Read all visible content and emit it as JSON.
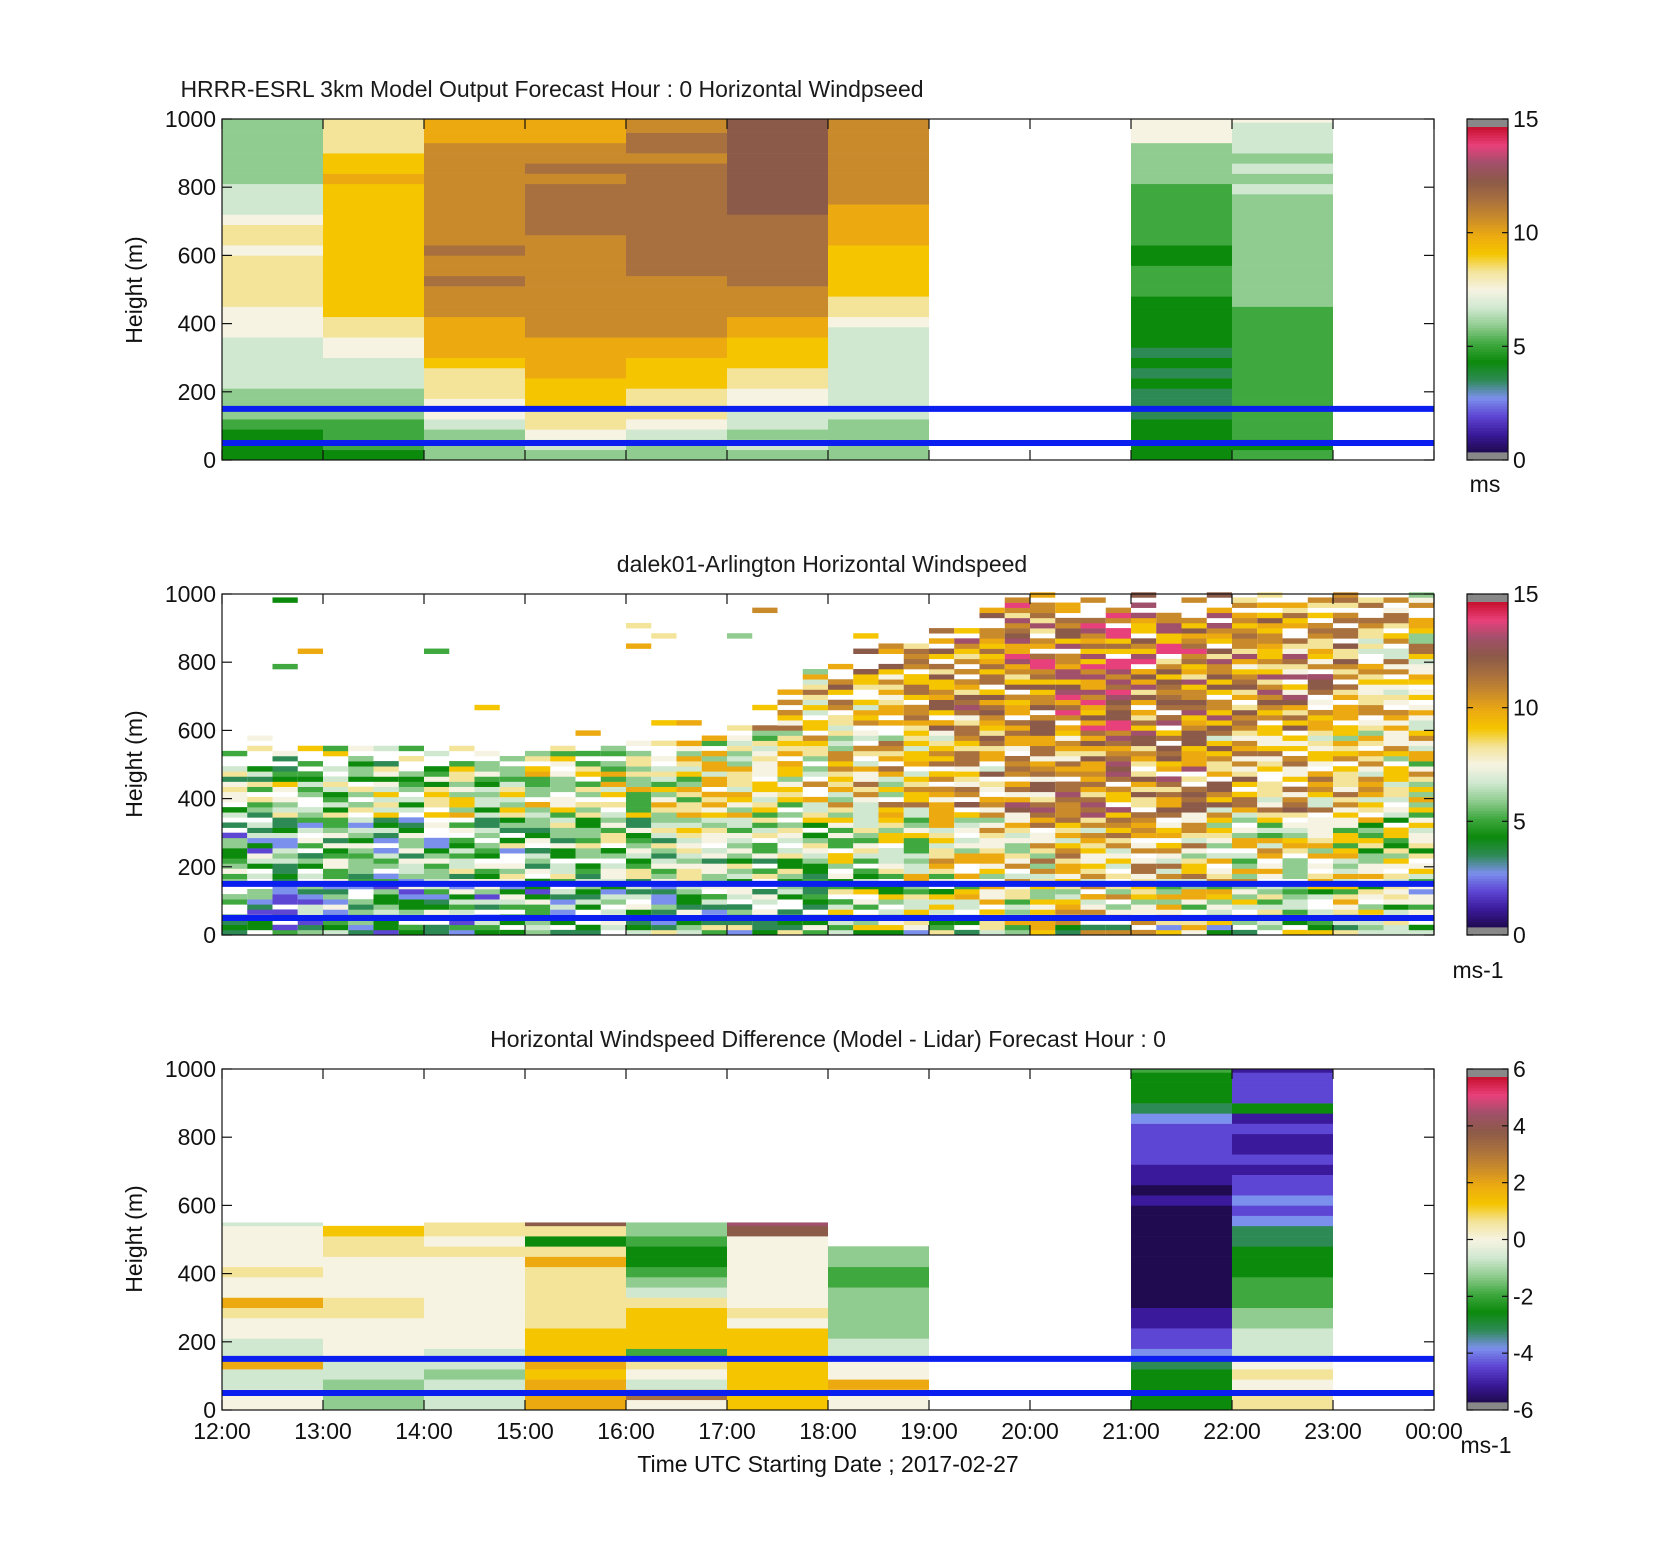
{
  "colors": {
    "speed_colormap": [
      "#888888",
      "#200a50",
      "#3a1a9a",
      "#5e46d4",
      "#7b8fec",
      "#2e8a55",
      "#0c8a0c",
      "#3fa83f",
      "#90cc90",
      "#d0e8d0",
      "#f6f3e2",
      "#f3e49a",
      "#f5c500",
      "#ecaa10",
      "#c98a2c",
      "#a8703e",
      "#8c5a48",
      "#a0506a",
      "#e8407a",
      "#c8102e",
      "#888888"
    ],
    "diff_colormap": [
      "#888888",
      "#200a50",
      "#3a1a9a",
      "#5e46d4",
      "#7b8fec",
      "#2e8a55",
      "#0c8a0c",
      "#3fa83f",
      "#90cc90",
      "#d0e8d0",
      "#f6f3e2",
      "#f3e49a",
      "#f5c500",
      "#ecaa10",
      "#c98a2c",
      "#a8703e",
      "#8c5a48",
      "#a0506a",
      "#e8407a",
      "#c8102e",
      "#888888"
    ],
    "reference_lines": "#0a1ef0"
  },
  "chart_data": [
    {
      "type": "heatmap",
      "title": "HRRR-ESRL 3km Model Output   Forecast Hour : 0 Horizontal Windpseed",
      "ylabel": "Height (m)",
      "ylim": [
        0,
        1000
      ],
      "yticks": [
        "0",
        "200",
        "400",
        "600",
        "800",
        "1000"
      ],
      "xlim_hours": [
        12,
        24
      ],
      "colorbar": {
        "ticks": [
          "0",
          "5",
          "10",
          "15"
        ],
        "range": [
          0,
          15
        ],
        "unit": "ms"
      },
      "reference_heights_m": [
        50,
        150
      ],
      "hour_columns": [
        {
          "start": 12,
          "end": 13,
          "profile": [
            [
              0,
              4.6
            ],
            [
              60,
              4.5
            ],
            [
              100,
              5.2
            ],
            [
              150,
              5.8
            ],
            [
              200,
              6.2
            ],
            [
              300,
              6.8
            ],
            [
              400,
              7.4
            ],
            [
              450,
              7.8
            ],
            [
              500,
              8.0
            ],
            [
              700,
              8.0
            ],
            [
              720,
              7.0
            ],
            [
              800,
              6.5
            ],
            [
              900,
              6.0
            ],
            [
              1000,
              6.0
            ]
          ]
        },
        {
          "start": 13,
          "end": 14,
          "profile": [
            [
              0,
              4.6
            ],
            [
              60,
              5.0
            ],
            [
              120,
              5.8
            ],
            [
              200,
              6.3
            ],
            [
              300,
              6.8
            ],
            [
              350,
              7.6
            ],
            [
              400,
              8.5
            ],
            [
              450,
              9.0
            ],
            [
              600,
              9.2
            ],
            [
              900,
              9.3
            ],
            [
              920,
              8.2
            ],
            [
              1000,
              8.0
            ]
          ]
        },
        {
          "start": 14,
          "end": 15,
          "profile": [
            [
              0,
              5.6
            ],
            [
              60,
              6.0
            ],
            [
              120,
              7.3
            ],
            [
              200,
              8.0
            ],
            [
              300,
              9.6
            ],
            [
              400,
              10.2
            ],
            [
              500,
              11.0
            ],
            [
              800,
              10.8
            ],
            [
              900,
              10.2
            ],
            [
              1000,
              10.0
            ]
          ]
        },
        {
          "start": 15,
          "end": 16,
          "profile": [
            [
              0,
              6.0
            ],
            [
              60,
              7.0
            ],
            [
              120,
              8.5
            ],
            [
              200,
              9.2
            ],
            [
              300,
              10.0
            ],
            [
              400,
              10.8
            ],
            [
              500,
              11.0
            ],
            [
              800,
              11.2
            ],
            [
              900,
              10.6
            ],
            [
              1000,
              10.0
            ]
          ]
        },
        {
          "start": 16,
          "end": 17,
          "profile": [
            [
              0,
              5.8
            ],
            [
              60,
              6.5
            ],
            [
              120,
              7.8
            ],
            [
              200,
              8.6
            ],
            [
              300,
              9.6
            ],
            [
              400,
              10.5
            ],
            [
              500,
              11.0
            ],
            [
              800,
              11.4
            ],
            [
              1000,
              11.0
            ]
          ]
        },
        {
          "start": 17,
          "end": 18,
          "profile": [
            [
              0,
              5.8
            ],
            [
              60,
              6.2
            ],
            [
              150,
              7.0
            ],
            [
              200,
              7.6
            ],
            [
              300,
              9.0
            ],
            [
              400,
              10.0
            ],
            [
              500,
              11.3
            ],
            [
              700,
              11.8
            ],
            [
              800,
              12.2
            ],
            [
              1000,
              12.4
            ]
          ]
        },
        {
          "start": 18,
          "end": 19,
          "profile": [
            [
              0,
              6.0
            ],
            [
              100,
              6.3
            ],
            [
              200,
              6.5
            ],
            [
              300,
              6.8
            ],
            [
              380,
              7.0
            ],
            [
              420,
              8.0
            ],
            [
              500,
              9.0
            ],
            [
              600,
              9.2
            ],
            [
              700,
              9.8
            ],
            [
              800,
              10.5
            ],
            [
              1000,
              10.8
            ]
          ]
        },
        {
          "start": 21,
          "end": 22,
          "profile": [
            [
              0,
              4.5
            ],
            [
              60,
              4.2
            ],
            [
              150,
              3.7
            ],
            [
              250,
              4.0
            ],
            [
              400,
              4.4
            ],
            [
              500,
              4.6
            ],
            [
              600,
              4.8
            ],
            [
              700,
              5.0
            ],
            [
              800,
              5.4
            ],
            [
              900,
              6.0
            ],
            [
              950,
              7.0
            ],
            [
              1000,
              7.4
            ]
          ]
        },
        {
          "start": 22,
          "end": 23,
          "profile": [
            [
              0,
              4.6
            ],
            [
              100,
              4.8
            ],
            [
              200,
              5.0
            ],
            [
              400,
              5.2
            ],
            [
              500,
              5.6
            ],
            [
              600,
              5.8
            ],
            [
              700,
              6.0
            ],
            [
              800,
              6.2
            ],
            [
              900,
              6.5
            ],
            [
              950,
              7.0
            ],
            [
              1000,
              7.2
            ]
          ]
        }
      ]
    },
    {
      "type": "heatmap",
      "title": "dalek01-Arlington  Horizontal Windspeed",
      "ylabel": "Height (m)",
      "ylim": [
        0,
        1000
      ],
      "yticks": [
        "0",
        "200",
        "400",
        "600",
        "800",
        "1000"
      ],
      "xlim_hours": [
        12,
        24
      ],
      "colorbar": {
        "ticks": [
          "0",
          "5",
          "10",
          "15"
        ],
        "range": [
          0,
          15
        ],
        "unit": "ms-1"
      },
      "reference_heights_m": [
        50,
        150
      ],
      "data_top_m_by_hour": [
        [
          12,
          560
        ],
        [
          13,
          560
        ],
        [
          14,
          550
        ],
        [
          15,
          550
        ],
        [
          16,
          560
        ],
        [
          17,
          600
        ],
        [
          18,
          800
        ],
        [
          19,
          900
        ],
        [
          20,
          1000
        ],
        [
          21,
          1000
        ],
        [
          22,
          1000
        ],
        [
          23,
          1000
        ],
        [
          24,
          1000
        ]
      ],
      "mean_speed_by_hour": [
        [
          12,
          5.5
        ],
        [
          15,
          6.5
        ],
        [
          17,
          7.0
        ],
        [
          18,
          7.5
        ],
        [
          19,
          8.5
        ],
        [
          20,
          9.5
        ],
        [
          21,
          10.0
        ],
        [
          22,
          9.0
        ],
        [
          23,
          8.5
        ],
        [
          24,
          7.0
        ]
      ]
    },
    {
      "type": "heatmap",
      "title": "Horizontal Windspeed Difference (Model - Lidar) Forecast Hour : 0",
      "xlabel": "Time UTC  Starting Date ; 2017-02-27",
      "ylabel": "Height (m)",
      "ylim": [
        0,
        1000
      ],
      "yticks": [
        "0",
        "200",
        "400",
        "600",
        "800",
        "1000"
      ],
      "xlim_hours": [
        12,
        24
      ],
      "xticks": [
        "12:00",
        "13:00",
        "14:00",
        "15:00",
        "16:00",
        "17:00",
        "18:00",
        "19:00",
        "20:00",
        "21:00",
        "22:00",
        "23:00",
        "00:00"
      ],
      "colorbar": {
        "ticks": [
          "-6",
          "-4",
          "-2",
          "0",
          "2",
          "4",
          "6"
        ],
        "range": [
          -6,
          6
        ],
        "unit": "ms-1"
      },
      "reference_heights_m": [
        50,
        150
      ],
      "hour_columns": [
        {
          "start": 12,
          "end": 13,
          "top": 550,
          "profile": [
            [
              0,
              0.0
            ],
            [
              100,
              -0.6
            ],
            [
              200,
              -0.5
            ],
            [
              300,
              0.6
            ],
            [
              400,
              0.3
            ],
            [
              500,
              0.1
            ],
            [
              550,
              -0.5
            ]
          ]
        },
        {
          "start": 13,
          "end": 14,
          "top": 540,
          "profile": [
            [
              0,
              -1.4
            ],
            [
              100,
              -1.0
            ],
            [
              200,
              -0.2
            ],
            [
              300,
              0.5
            ],
            [
              400,
              -0.2
            ],
            [
              500,
              0.8
            ],
            [
              540,
              0.8
            ]
          ]
        },
        {
          "start": 14,
          "end": 15,
          "top": 550,
          "profile": [
            [
              0,
              -0.6
            ],
            [
              100,
              -0.8
            ],
            [
              200,
              -0.3
            ],
            [
              300,
              0.0
            ],
            [
              400,
              0.1
            ],
            [
              500,
              0.2
            ],
            [
              550,
              0.6
            ]
          ]
        },
        {
          "start": 15,
          "end": 16,
          "top": 550,
          "profile": [
            [
              0,
              2.0
            ],
            [
              100,
              1.8
            ],
            [
              200,
              1.0
            ],
            [
              300,
              0.6
            ],
            [
              400,
              0.4
            ],
            [
              450,
              2.8
            ],
            [
              500,
              -3.5
            ],
            [
              550,
              4.5
            ]
          ]
        },
        {
          "start": 16,
          "end": 17,
          "top": 550,
          "profile": [
            [
              0,
              0.0
            ],
            [
              100,
              -0.2
            ],
            [
              150,
              1.0
            ],
            [
              200,
              1.1
            ],
            [
              300,
              1.0
            ],
            [
              350,
              -1.0
            ],
            [
              400,
              -2.0
            ],
            [
              450,
              -3.0
            ],
            [
              550,
              -0.8
            ]
          ]
        },
        {
          "start": 17,
          "end": 18,
          "top": 550,
          "profile": [
            [
              0,
              1.2
            ],
            [
              100,
              1.1
            ],
            [
              200,
              1.0
            ],
            [
              300,
              0.0
            ],
            [
              500,
              0.0
            ],
            [
              520,
              3.5
            ],
            [
              550,
              4.4
            ]
          ]
        },
        {
          "start": 18,
          "end": 19,
          "top": 480,
          "profile": [
            [
              0,
              0.2
            ],
            [
              100,
              0.0
            ],
            [
              150,
              -0.4
            ],
            [
              380,
              -1.8
            ],
            [
              400,
              -2.0
            ],
            [
              480,
              -1.0
            ]
          ]
        },
        {
          "start": 21,
          "end": 22,
          "top": 1000,
          "profile": [
            [
              0,
              -2.5
            ],
            [
              100,
              -2.4
            ],
            [
              150,
              -3.5
            ],
            [
              200,
              -4.5
            ],
            [
              300,
              -5.3
            ],
            [
              400,
              -5.8
            ],
            [
              600,
              -5.6
            ],
            [
              700,
              -5.0
            ],
            [
              800,
              -4.4
            ],
            [
              900,
              -2.8
            ],
            [
              1000,
              -2.4
            ]
          ]
        },
        {
          "start": 22,
          "end": 23,
          "top": 1000,
          "profile": [
            [
              0,
              0.6
            ],
            [
              100,
              0.4
            ],
            [
              150,
              -0.4
            ],
            [
              200,
              -0.8
            ],
            [
              300,
              -1.5
            ],
            [
              400,
              -2.4
            ],
            [
              500,
              -3.0
            ],
            [
              600,
              -4.2
            ],
            [
              700,
              -4.6
            ],
            [
              800,
              -4.8
            ],
            [
              1000,
              -4.8
            ]
          ]
        }
      ]
    }
  ]
}
